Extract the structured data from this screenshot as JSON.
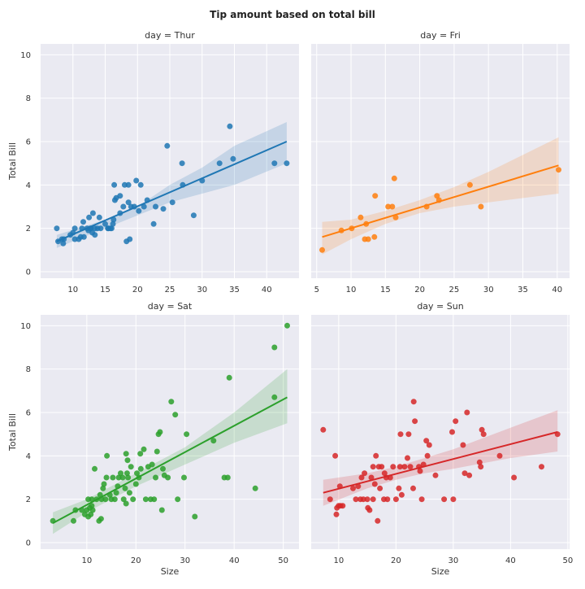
{
  "title": "Tip amount based on total bill",
  "colors": {
    "background": "#eaeaf2",
    "grid": "#ffffff",
    "text": "#333333"
  },
  "chart_data": [
    {
      "type": "scatter",
      "title": "day = Thur",
      "xlabel": "",
      "ylabel": "Total Bill",
      "xlim": [
        5,
        45
      ],
      "ylim": [
        -0.3,
        10.5
      ],
      "xticks": [
        10,
        15,
        20,
        25,
        30,
        35,
        40
      ],
      "yticks": [
        0,
        2,
        4,
        6,
        8,
        10
      ],
      "color": "#1f77b4",
      "grid": true,
      "regression": {
        "start": [
          7.5,
          1.4
        ],
        "end": [
          43.1,
          6.0
        ]
      },
      "ci_band": [
        [
          7.5,
          1.1,
          1.7
        ],
        [
          15,
          2.0,
          2.4
        ],
        [
          20,
          2.6,
          3.0
        ],
        [
          25,
          3.2,
          4.0
        ],
        [
          30,
          3.6,
          4.8
        ],
        [
          35,
          4.0,
          5.8
        ],
        [
          43.1,
          5.0,
          6.9
        ]
      ],
      "points": [
        [
          7.5,
          2.0
        ],
        [
          7.7,
          1.4
        ],
        [
          8.3,
          1.5
        ],
        [
          8.5,
          1.3
        ],
        [
          8.6,
          1.5
        ],
        [
          9.6,
          1.7
        ],
        [
          10.0,
          1.8
        ],
        [
          10.3,
          2.0
        ],
        [
          10.3,
          1.5
        ],
        [
          10.9,
          1.5
        ],
        [
          11.2,
          1.6
        ],
        [
          11.4,
          2.0
        ],
        [
          11.6,
          2.3
        ],
        [
          11.7,
          1.6
        ],
        [
          12.2,
          2.0
        ],
        [
          12.4,
          1.9
        ],
        [
          12.5,
          2.5
        ],
        [
          12.7,
          2.0
        ],
        [
          12.8,
          2.0
        ],
        [
          13.0,
          1.8
        ],
        [
          13.1,
          2.7
        ],
        [
          13.4,
          2.0
        ],
        [
          13.4,
          1.7
        ],
        [
          13.8,
          2.0
        ],
        [
          14.1,
          2.5
        ],
        [
          14.3,
          2.0
        ],
        [
          15.0,
          2.2
        ],
        [
          15.4,
          2.0
        ],
        [
          15.5,
          2.0
        ],
        [
          15.8,
          2.0
        ],
        [
          16.0,
          2.0
        ],
        [
          16.2,
          2.2
        ],
        [
          16.3,
          2.4
        ],
        [
          16.5,
          3.3
        ],
        [
          16.4,
          4.0
        ],
        [
          16.7,
          3.4
        ],
        [
          17.3,
          2.7
        ],
        [
          17.3,
          3.5
        ],
        [
          17.8,
          3.0
        ],
        [
          18.0,
          4.0
        ],
        [
          18.3,
          1.4
        ],
        [
          18.6,
          4.0
        ],
        [
          18.6,
          3.2
        ],
        [
          18.8,
          1.5
        ],
        [
          19.0,
          3.0
        ],
        [
          19.5,
          3.0
        ],
        [
          19.8,
          4.2
        ],
        [
          20.2,
          2.8
        ],
        [
          20.5,
          4.0
        ],
        [
          21.0,
          3.0
        ],
        [
          21.5,
          3.3
        ],
        [
          22.5,
          2.2
        ],
        [
          22.8,
          3.0
        ],
        [
          24.0,
          2.9
        ],
        [
          24.6,
          5.8
        ],
        [
          25.4,
          3.2
        ],
        [
          26.9,
          5.0
        ],
        [
          27.0,
          4.0
        ],
        [
          28.7,
          2.6
        ],
        [
          30.0,
          4.2
        ],
        [
          32.7,
          5.0
        ],
        [
          34.3,
          6.7
        ],
        [
          34.8,
          5.2
        ],
        [
          41.2,
          5.0
        ],
        [
          43.1,
          5.0
        ]
      ]
    },
    {
      "type": "scatter",
      "title": "day = Fri",
      "xlabel": "",
      "ylabel": "",
      "xlim": [
        4.2,
        41.8
      ],
      "ylim": [
        -0.3,
        10.5
      ],
      "xticks": [
        5,
        10,
        15,
        20,
        25,
        30,
        35,
        40
      ],
      "yticks": [
        0,
        2,
        4,
        6,
        8,
        10
      ],
      "color": "#ff7f0e",
      "grid": true,
      "regression": {
        "start": [
          5.8,
          1.6
        ],
        "end": [
          40.2,
          4.9
        ]
      },
      "ci_band": [
        [
          5.8,
          0.8,
          2.3
        ],
        [
          10,
          1.5,
          2.4
        ],
        [
          15,
          2.2,
          2.8
        ],
        [
          20,
          2.7,
          3.3
        ],
        [
          25,
          3.0,
          3.9
        ],
        [
          30,
          3.2,
          4.6
        ],
        [
          40.2,
          3.6,
          6.2
        ]
      ],
      "points": [
        [
          5.8,
          1.0
        ],
        [
          8.6,
          1.9
        ],
        [
          10.1,
          2.0
        ],
        [
          11.4,
          2.5
        ],
        [
          12.0,
          1.5
        ],
        [
          12.2,
          2.2
        ],
        [
          12.5,
          1.5
        ],
        [
          13.4,
          1.6
        ],
        [
          13.5,
          3.5
        ],
        [
          15.4,
          3.0
        ],
        [
          16.0,
          3.0
        ],
        [
          16.3,
          4.3
        ],
        [
          16.5,
          2.5
        ],
        [
          21.0,
          3.0
        ],
        [
          22.5,
          3.5
        ],
        [
          22.8,
          3.3
        ],
        [
          27.3,
          4.0
        ],
        [
          28.9,
          3.0
        ],
        [
          40.2,
          4.7
        ]
      ]
    },
    {
      "type": "scatter",
      "title": "day = Sat",
      "xlabel": "Size",
      "ylabel": "Total Bill",
      "xlim": [
        0.6,
        53.2
      ],
      "ylim": [
        -0.3,
        10.5
      ],
      "xticks": [
        10,
        20,
        30,
        40,
        50
      ],
      "yticks": [
        0,
        2,
        4,
        6,
        8,
        10
      ],
      "color": "#2ca02c",
      "grid": true,
      "regression": {
        "start": [
          3.1,
          0.9
        ],
        "end": [
          50.8,
          6.7
        ]
      },
      "ci_band": [
        [
          3.1,
          0.4,
          1.4
        ],
        [
          10,
          1.4,
          2.0
        ],
        [
          20,
          2.6,
          3.2
        ],
        [
          30,
          3.6,
          4.4
        ],
        [
          40,
          4.6,
          6.0
        ],
        [
          50.8,
          5.5,
          8.0
        ]
      ],
      "points": [
        [
          3.1,
          1.0
        ],
        [
          7.3,
          1.0
        ],
        [
          7.7,
          1.5
        ],
        [
          9.0,
          1.5
        ],
        [
          9.6,
          1.3
        ],
        [
          10.0,
          1.5
        ],
        [
          10.3,
          1.2
        ],
        [
          10.3,
          2.0
        ],
        [
          10.6,
          1.6
        ],
        [
          10.8,
          1.3
        ],
        [
          11.0,
          1.7
        ],
        [
          11.0,
          2.0
        ],
        [
          11.2,
          1.5
        ],
        [
          11.6,
          3.4
        ],
        [
          12.0,
          2.0
        ],
        [
          12.5,
          1.0
        ],
        [
          12.7,
          2.2
        ],
        [
          12.9,
          1.1
        ],
        [
          13.0,
          2.0
        ],
        [
          13.3,
          2.5
        ],
        [
          13.5,
          2.7
        ],
        [
          13.8,
          2.0
        ],
        [
          14.0,
          3.0
        ],
        [
          14.1,
          4.0
        ],
        [
          14.7,
          2.2
        ],
        [
          15.0,
          2.0
        ],
        [
          15.3,
          3.0
        ],
        [
          15.7,
          2.0
        ],
        [
          16.0,
          2.3
        ],
        [
          16.3,
          2.6
        ],
        [
          16.5,
          3.0
        ],
        [
          16.9,
          3.2
        ],
        [
          17.3,
          3.0
        ],
        [
          17.5,
          2.0
        ],
        [
          17.8,
          2.5
        ],
        [
          18.0,
          1.8
        ],
        [
          18.0,
          4.1
        ],
        [
          18.2,
          3.2
        ],
        [
          18.3,
          3.8
        ],
        [
          18.4,
          3.0
        ],
        [
          18.7,
          2.3
        ],
        [
          19.0,
          3.5
        ],
        [
          19.4,
          2.0
        ],
        [
          20.0,
          2.7
        ],
        [
          20.2,
          3.2
        ],
        [
          20.6,
          3.0
        ],
        [
          20.9,
          4.1
        ],
        [
          21.0,
          3.4
        ],
        [
          21.6,
          4.3
        ],
        [
          22.0,
          2.0
        ],
        [
          22.5,
          3.5
        ],
        [
          23.0,
          2.0
        ],
        [
          23.3,
          3.6
        ],
        [
          23.7,
          2.0
        ],
        [
          24.0,
          3.0
        ],
        [
          24.3,
          4.2
        ],
        [
          24.6,
          5.0
        ],
        [
          24.9,
          5.1
        ],
        [
          25.3,
          1.5
        ],
        [
          25.5,
          3.4
        ],
        [
          25.8,
          3.1
        ],
        [
          26.5,
          3.0
        ],
        [
          27.2,
          6.5
        ],
        [
          28.0,
          5.9
        ],
        [
          28.5,
          2.0
        ],
        [
          29.8,
          3.0
        ],
        [
          30.3,
          5.0
        ],
        [
          32.0,
          1.2
        ],
        [
          35.8,
          4.7
        ],
        [
          38.0,
          3.0
        ],
        [
          39.0,
          7.6
        ],
        [
          38.7,
          3.0
        ],
        [
          44.3,
          2.5
        ],
        [
          48.2,
          9.0
        ],
        [
          48.2,
          6.7
        ],
        [
          50.8,
          10.0
        ]
      ]
    },
    {
      "type": "scatter",
      "title": "day = Sun",
      "xlabel": "Size",
      "ylabel": "",
      "xlim": [
        5.2,
        50.3
      ],
      "ylim": [
        -0.3,
        10.5
      ],
      "xticks": [
        10,
        20,
        30,
        40,
        50
      ],
      "yticks": [
        0,
        2,
        4,
        6,
        8,
        10
      ],
      "color": "#d62728",
      "grid": true,
      "regression": {
        "start": [
          7.3,
          2.3
        ],
        "end": [
          48.2,
          5.1
        ]
      },
      "ci_band": [
        [
          7.3,
          1.7,
          2.9
        ],
        [
          15,
          2.5,
          3.2
        ],
        [
          20,
          2.9,
          3.5
        ],
        [
          25,
          3.2,
          3.9
        ],
        [
          30,
          3.4,
          4.3
        ],
        [
          40,
          3.9,
          5.3
        ],
        [
          48.2,
          4.2,
          6.1
        ]
      ],
      "points": [
        [
          7.3,
          5.2
        ],
        [
          8.5,
          2.0
        ],
        [
          9.4,
          4.0
        ],
        [
          9.6,
          1.3
        ],
        [
          9.7,
          1.6
        ],
        [
          10.0,
          1.7
        ],
        [
          10.2,
          2.6
        ],
        [
          10.3,
          1.7
        ],
        [
          10.7,
          1.7
        ],
        [
          12.5,
          2.5
        ],
        [
          13.0,
          2.0
        ],
        [
          13.4,
          2.6
        ],
        [
          13.8,
          2.0
        ],
        [
          14.0,
          3.0
        ],
        [
          14.3,
          2.0
        ],
        [
          14.5,
          3.2
        ],
        [
          15.0,
          2.0
        ],
        [
          15.1,
          1.6
        ],
        [
          15.4,
          1.5
        ],
        [
          15.7,
          3.0
        ],
        [
          16.0,
          3.5
        ],
        [
          16.0,
          2.0
        ],
        [
          16.3,
          2.7
        ],
        [
          16.5,
          4.0
        ],
        [
          16.8,
          1.0
        ],
        [
          17.0,
          3.5
        ],
        [
          17.2,
          2.5
        ],
        [
          17.5,
          3.5
        ],
        [
          17.9,
          2.0
        ],
        [
          18.0,
          3.2
        ],
        [
          18.3,
          3.0
        ],
        [
          18.5,
          2.0
        ],
        [
          19.0,
          3.0
        ],
        [
          19.5,
          3.5
        ],
        [
          20.0,
          2.0
        ],
        [
          20.5,
          2.5
        ],
        [
          20.7,
          3.5
        ],
        [
          20.8,
          5.0
        ],
        [
          21.0,
          2.2
        ],
        [
          21.5,
          3.5
        ],
        [
          22.0,
          3.9
        ],
        [
          22.2,
          5.0
        ],
        [
          22.5,
          3.5
        ],
        [
          23.0,
          2.5
        ],
        [
          23.1,
          6.5
        ],
        [
          23.3,
          5.6
        ],
        [
          24.0,
          3.5
        ],
        [
          24.2,
          3.3
        ],
        [
          24.5,
          2.0
        ],
        [
          24.8,
          3.6
        ],
        [
          25.3,
          4.7
        ],
        [
          25.5,
          4.0
        ],
        [
          25.8,
          4.5
        ],
        [
          26.9,
          3.1
        ],
        [
          28.4,
          2.0
        ],
        [
          29.8,
          5.1
        ],
        [
          30.0,
          2.0
        ],
        [
          30.4,
          5.6
        ],
        [
          31.7,
          4.5
        ],
        [
          32.0,
          3.2
        ],
        [
          32.4,
          6.0
        ],
        [
          32.8,
          3.1
        ],
        [
          34.6,
          3.7
        ],
        [
          34.8,
          3.5
        ],
        [
          35.0,
          5.2
        ],
        [
          35.3,
          5.0
        ],
        [
          38.1,
          4.0
        ],
        [
          40.6,
          3.0
        ],
        [
          45.4,
          3.5
        ],
        [
          48.2,
          5.0
        ]
      ]
    }
  ]
}
